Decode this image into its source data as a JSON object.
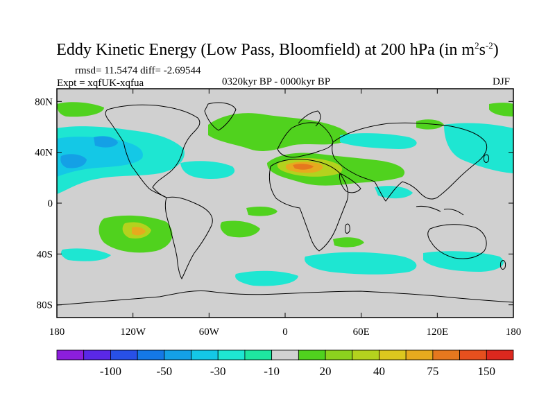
{
  "title": {
    "main": "Eddy Kinetic Energy (Low Pass, Bloomfield) at 200 hPa (in m",
    "sup1": "2",
    "mid": "s",
    "sup2": "-2",
    "end": ")"
  },
  "stats": {
    "rmsd_line": "rmsd= 11.5474 diff= -2.69544",
    "expt_line": "Expt = xqfUK-xqfua"
  },
  "period": "0320kyr BP - 0000kyr BP",
  "season": "DJF",
  "map": {
    "lat_labels": [
      "80N",
      "40N",
      "0",
      "40S",
      "80S"
    ],
    "lat_values": [
      80,
      40,
      0,
      -40,
      -80
    ],
    "lon_labels": [
      "180",
      "120W",
      "60W",
      "0",
      "60E",
      "120E",
      "180"
    ],
    "lon_values": [
      -180,
      -120,
      -60,
      0,
      60,
      120,
      180
    ],
    "lat_range": [
      -90,
      90
    ],
    "lon_range": [
      -180,
      180
    ],
    "background_color": "#d0d0d0",
    "anomaly_regions": [
      {
        "name": "north-atlantic-green",
        "lon": -15,
        "lat": 65,
        "level": 15
      },
      {
        "name": "sahara-mideast-orange",
        "lon": 15,
        "lat": 30,
        "level": 50
      },
      {
        "name": "arabia-green",
        "lon": 50,
        "lat": 28,
        "level": 20
      },
      {
        "name": "north-pacific-blue",
        "lon": -160,
        "lat": 35,
        "level": -40
      },
      {
        "name": "south-pacific-orange",
        "lon": -120,
        "lat": -20,
        "level": 45
      },
      {
        "name": "south-atlantic-green",
        "lon": -30,
        "lat": -20,
        "level": 15
      },
      {
        "name": "southern-ocean-cyan",
        "lon": 60,
        "lat": -40,
        "level": -15
      },
      {
        "name": "north-pacific-east-cyan",
        "lon": 150,
        "lat": 50,
        "level": -15
      }
    ]
  },
  "colorbar": {
    "labels": [
      "-100",
      "-50",
      "-30",
      "-10",
      "20",
      "40",
      "75",
      "150"
    ],
    "colors": [
      "#8c1edc",
      "#5a28e6",
      "#2850e6",
      "#1478e6",
      "#14a0e6",
      "#14c8e6",
      "#1ee6d2",
      "#1ee6a0",
      "#d2d2d2",
      "#50d21e",
      "#8cd21e",
      "#b4d21e",
      "#dcc81e",
      "#e6aa1e",
      "#e6781e",
      "#e6501e",
      "#dc281e"
    ]
  }
}
